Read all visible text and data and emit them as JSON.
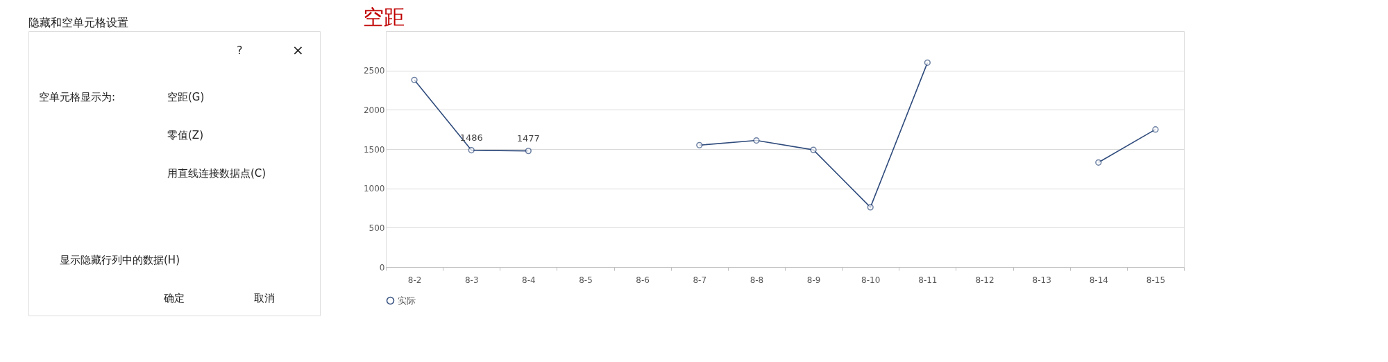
{
  "chart_data": [
    {
      "type": "other",
      "title": "隐藏和空单元格设置",
      "annotations": [
        "?",
        "×",
        "空单元格显示为:",
        "空距(G)",
        "零值(Z)",
        "用直线连接数据点(C)",
        "显示隐藏行列中的数据(H)",
        "确定",
        "取消"
      ]
    },
    {
      "type": "line",
      "title": "空距",
      "categories": [
        "8-2",
        "8-3",
        "8-4",
        "8-5",
        "8-6",
        "8-7",
        "8-8",
        "8-9",
        "8-10",
        "8-11",
        "8-12",
        "8-13",
        "8-14",
        "8-15"
      ],
      "series": [
        {
          "name": "实际",
          "color": "#2f4b7c",
          "values": [
            2380,
            1486,
            1477,
            null,
            null,
            1550,
            1610,
            1490,
            760,
            2600,
            null,
            null,
            1330,
            1750
          ],
          "value_labels": [
            null,
            "1486",
            "1477",
            null,
            null,
            null,
            null,
            null,
            null,
            null,
            null,
            null,
            null,
            null
          ]
        }
      ],
      "ylim": [
        0,
        3000
      ],
      "yticks": [
        0,
        500,
        1000,
        1500,
        2000,
        2500,
        {
          "value": 3000,
          "label": null
        }
      ],
      "grid": "y",
      "legend": "bottom",
      "marker": "circle",
      "line_style": "solid"
    }
  ]
}
